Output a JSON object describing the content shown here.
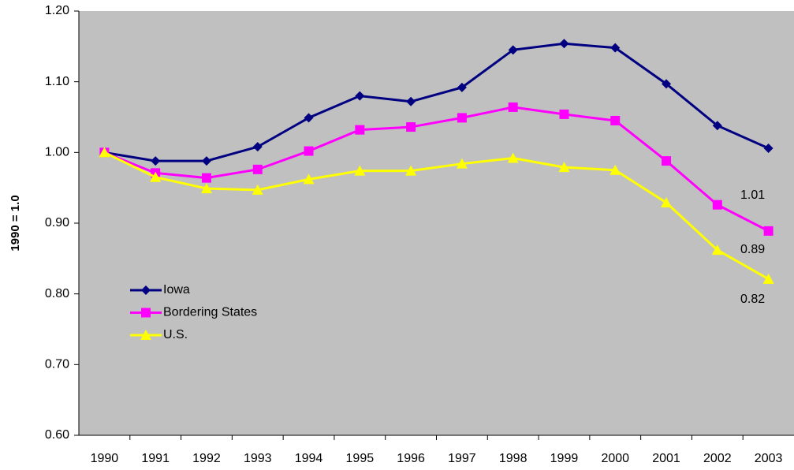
{
  "chart_data": {
    "type": "line",
    "y_label": "1990 = 1.0",
    "categories": [
      "1990",
      "1991",
      "1992",
      "1993",
      "1994",
      "1995",
      "1996",
      "1997",
      "1998",
      "1999",
      "2000",
      "2001",
      "2002",
      "2003"
    ],
    "series": [
      {
        "name": "Iowa",
        "color": "#000080",
        "marker": "diamond",
        "values": [
          1.0,
          0.988,
          0.988,
          1.008,
          1.049,
          1.08,
          1.072,
          1.092,
          1.145,
          1.154,
          1.148,
          1.097,
          1.038,
          1.006
        ],
        "value_labels": [
          null,
          null,
          null,
          null,
          null,
          null,
          null,
          null,
          null,
          null,
          null,
          null,
          null,
          "1.01"
        ]
      },
      {
        "name": "Bordering States",
        "color": "#ff00ff",
        "marker": "square",
        "values": [
          1.0,
          0.971,
          0.964,
          0.976,
          1.002,
          1.032,
          1.036,
          1.049,
          1.064,
          1.054,
          1.045,
          0.988,
          0.926,
          0.889
        ],
        "value_labels": [
          null,
          null,
          null,
          null,
          null,
          null,
          null,
          null,
          null,
          null,
          null,
          null,
          null,
          "0.89"
        ]
      },
      {
        "name": "U.S.",
        "color": "#ffff00",
        "marker": "triangle",
        "values": [
          1.0,
          0.965,
          0.949,
          0.947,
          0.962,
          0.974,
          0.974,
          0.984,
          0.992,
          0.979,
          0.975,
          0.929,
          0.862,
          0.821
        ],
        "value_labels": [
          null,
          null,
          null,
          null,
          null,
          null,
          null,
          null,
          null,
          null,
          null,
          null,
          null,
          "0.82"
        ]
      }
    ],
    "ylim": [
      0.6,
      1.2
    ],
    "yticks": [
      {
        "value": 0.6,
        "label": "0.60"
      },
      {
        "value": 0.7,
        "label": "0.70"
      },
      {
        "value": 0.8,
        "label": "0.80"
      },
      {
        "value": 0.9,
        "label": "0.90"
      },
      {
        "value": 1.0,
        "label": "1.00"
      },
      {
        "value": 1.1,
        "label": "1.10"
      },
      {
        "value": 1.2,
        "label": "1.20"
      }
    ],
    "grid": false,
    "legend": "left",
    "plot_background": "#c0c0c0"
  }
}
